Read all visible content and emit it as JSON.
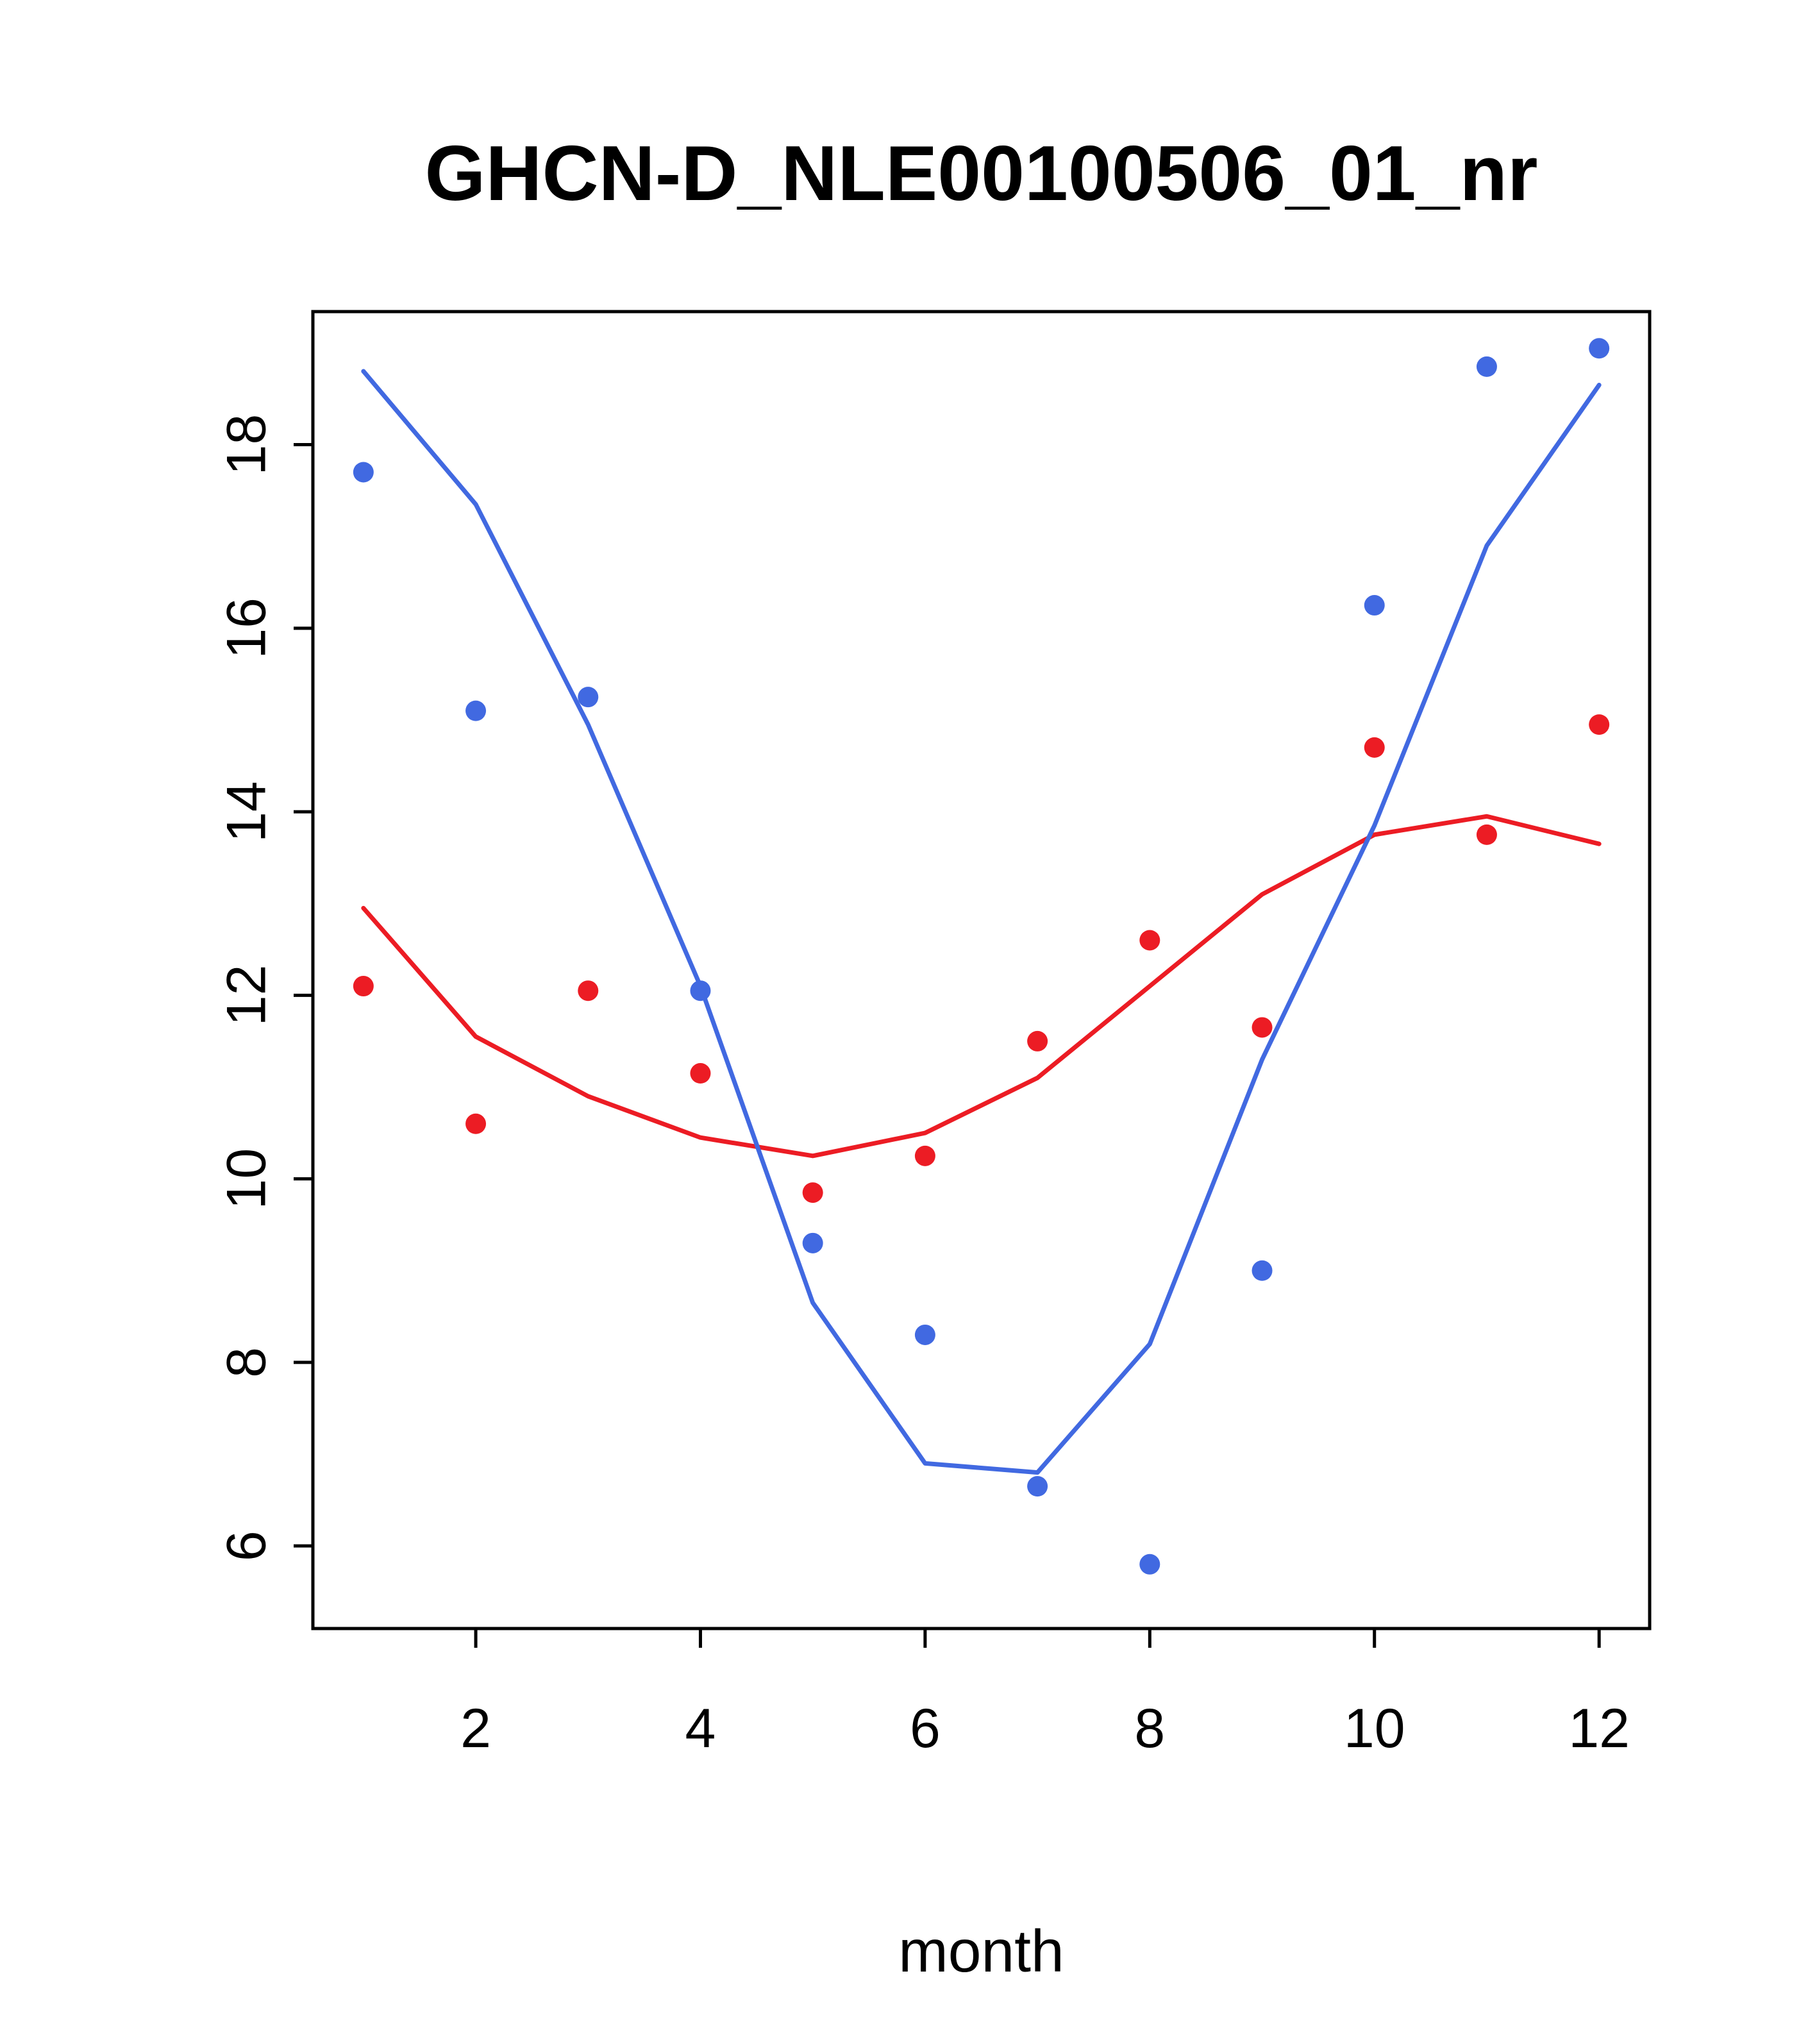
{
  "figure": {
    "title": "GHCN-D_NLE00100506_01_nr",
    "xlabel": "month"
  },
  "chart_data": {
    "type": "scatter",
    "title": "GHCN-D_NLE00100506_01_nr",
    "xlabel": "month",
    "ylabel": "",
    "x": [
      1,
      2,
      3,
      4,
      5,
      6,
      7,
      8,
      9,
      10,
      11,
      12
    ],
    "xlim": [
      0.55,
      12.45
    ],
    "ylim": [
      5.1,
      19.45
    ],
    "xticks": [
      2,
      4,
      6,
      8,
      10,
      12
    ],
    "yticks": [
      6,
      8,
      10,
      12,
      14,
      16,
      18
    ],
    "grid": false,
    "legend": "none",
    "colors": {
      "blue": "#4169E1",
      "red": "#EC1C24",
      "axis": "#000000"
    },
    "series": [
      {
        "name": "red-smooth-line",
        "kind": "line",
        "color_key": "red",
        "values": [
          12.95,
          11.55,
          10.9,
          10.45,
          10.25,
          10.5,
          11.1,
          12.1,
          13.1,
          13.75,
          13.95,
          13.65
        ]
      },
      {
        "name": "blue-smooth-line",
        "kind": "line",
        "color_key": "blue",
        "values": [
          18.8,
          17.35,
          14.95,
          12.1,
          8.65,
          6.9,
          6.8,
          8.2,
          11.3,
          13.85,
          16.9,
          18.65
        ]
      },
      {
        "name": "red-points",
        "kind": "points",
        "color_key": "red",
        "values": [
          12.1,
          10.6,
          12.05,
          11.15,
          9.85,
          10.25,
          11.5,
          12.6,
          11.65,
          14.7,
          13.75,
          14.95
        ]
      },
      {
        "name": "blue-points",
        "kind": "points",
        "color_key": "blue",
        "values": [
          17.7,
          15.1,
          15.25,
          12.05,
          9.3,
          8.3,
          6.65,
          5.8,
          9.0,
          16.25,
          18.85,
          19.05
        ]
      }
    ]
  }
}
